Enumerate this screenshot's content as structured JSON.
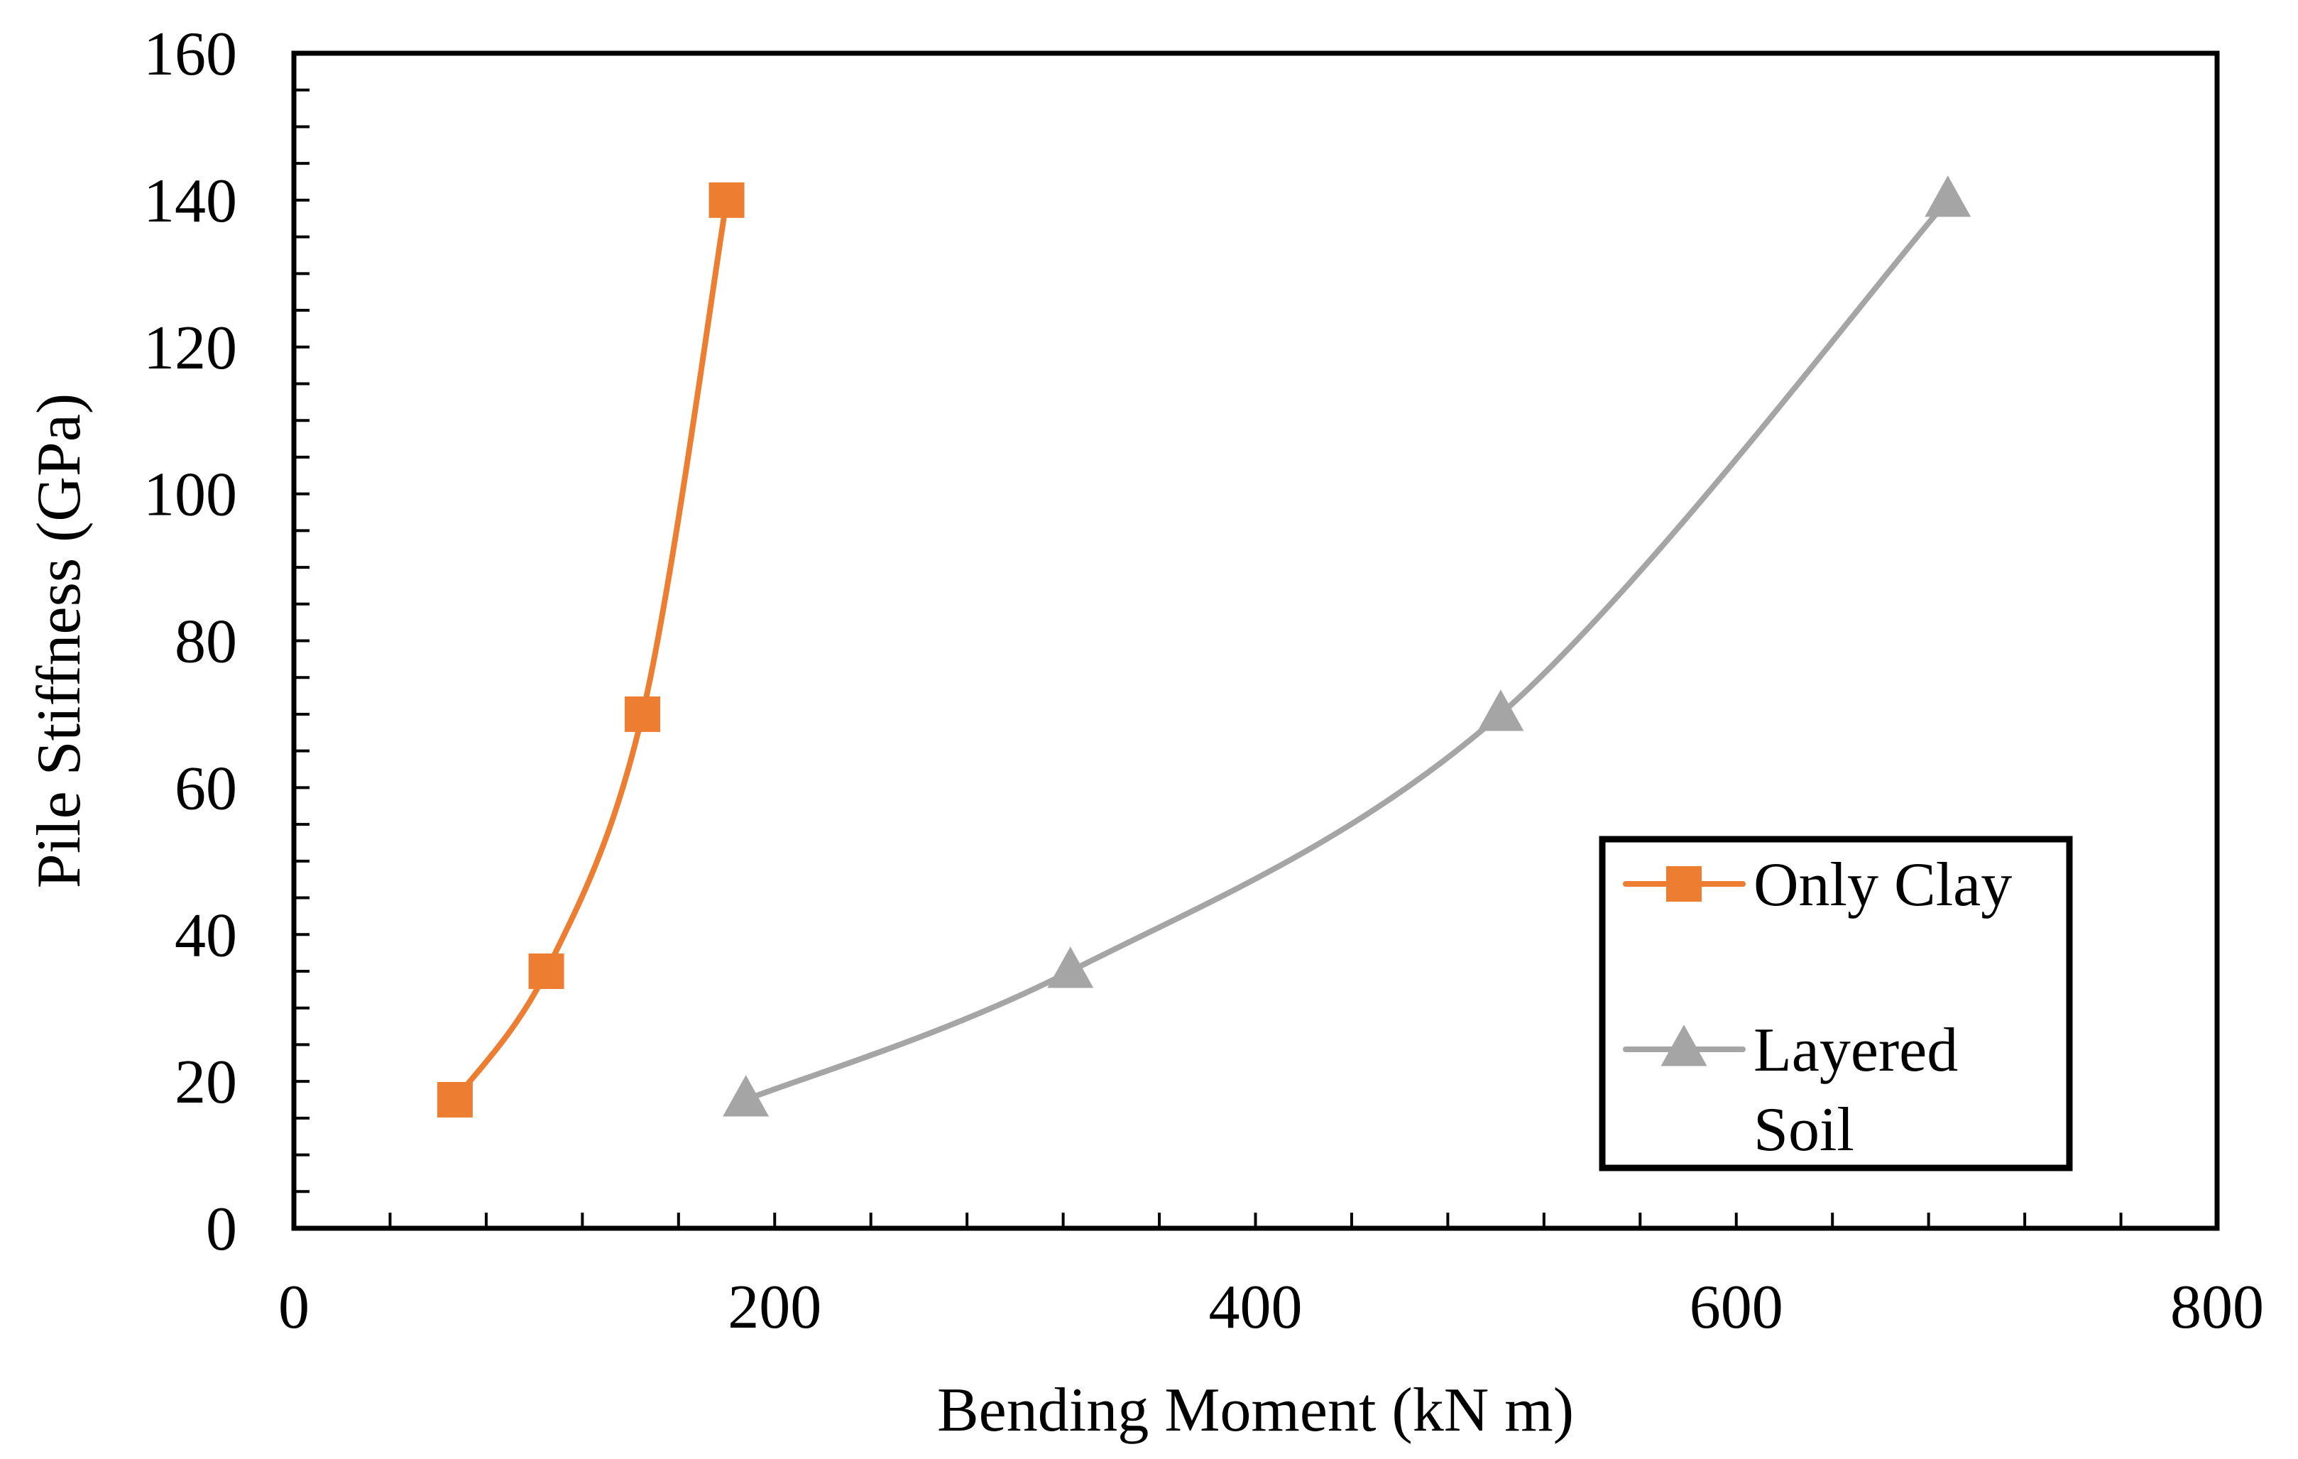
{
  "chart_data": {
    "type": "line",
    "title": "",
    "xlabel": "Bending Moment (kN m)",
    "ylabel": "Pile Stiffness (GPa)",
    "xlim": [
      0,
      800
    ],
    "ylim": [
      0,
      160
    ],
    "x_ticks": [
      0,
      200,
      400,
      600,
      800
    ],
    "y_ticks": [
      0,
      20,
      40,
      60,
      80,
      100,
      120,
      140,
      160
    ],
    "x_minor_step": 40,
    "y_minor_step": 5,
    "grid": false,
    "legend_position": "right",
    "smooth": true,
    "series": [
      {
        "name": "Only Clay",
        "color": "#ED7D31",
        "marker": "square",
        "x": [
          67,
          105,
          145,
          180
        ],
        "y": [
          17.5,
          35,
          70,
          140
        ]
      },
      {
        "name": "Layered Soil",
        "color": "#A5A5A5",
        "marker": "triangle",
        "x": [
          188,
          323,
          502,
          688
        ],
        "y": [
          17.5,
          35,
          70,
          140
        ]
      }
    ]
  }
}
